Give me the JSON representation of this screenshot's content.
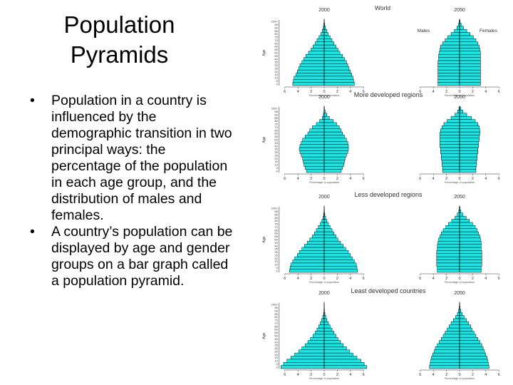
{
  "slide": {
    "title_line1": "Population",
    "title_line2": "Pyramids",
    "bullets": [
      "Population in a country is influenced by the demographic transition in two principal ways: the percentage of the population in each age group, and the distribution of males and females.",
      "A country’s population can be displayed by age and gender groups on a bar graph called a population pyramid."
    ]
  },
  "figure": {
    "colors": {
      "bar_fill": "#19e5e5",
      "bar_stroke": "#000000",
      "axis": "#333333"
    },
    "ylabel": "Age",
    "year_left": "2000",
    "year_right": "2050",
    "male_label": "Males",
    "female_label": "Females",
    "xlabel": "Percentage of population",
    "age_ticks": [
      "0",
      "5",
      "10",
      "15",
      "20",
      "25",
      "30",
      "35",
      "40",
      "45",
      "50",
      "55",
      "60",
      "65",
      "70",
      "75",
      "80",
      "85",
      "90",
      "95",
      "100+"
    ],
    "x_ticks": [
      "6",
      "4",
      "2",
      "0",
      "2",
      "4",
      "6"
    ]
  },
  "chart_data": [
    {
      "type": "bar",
      "orientation": "horizontal",
      "title": "World",
      "subtitle": "2000",
      "ylabel": "Age",
      "xlabel": "Percentage of population",
      "xlim": [
        -6,
        6
      ],
      "age_groups": [
        "0-4",
        "5-9",
        "10-14",
        "15-19",
        "20-24",
        "25-29",
        "30-34",
        "35-39",
        "40-44",
        "45-49",
        "50-54",
        "55-59",
        "60-64",
        "65-69",
        "70-74",
        "75-79",
        "80-84",
        "85-89",
        "90-94",
        "95-99",
        "100+"
      ],
      "series": [
        {
          "name": "Males",
          "values": [
            4.8,
            4.7,
            4.6,
            4.3,
            4.1,
            3.9,
            3.7,
            3.4,
            3.1,
            2.8,
            2.4,
            2.0,
            1.7,
            1.4,
            1.1,
            0.8,
            0.5,
            0.3,
            0.15,
            0.05,
            0.02
          ]
        },
        {
          "name": "Females",
          "values": [
            4.6,
            4.5,
            4.4,
            4.2,
            4.0,
            3.8,
            3.6,
            3.4,
            3.1,
            2.8,
            2.4,
            2.1,
            1.8,
            1.5,
            1.2,
            0.9,
            0.6,
            0.4,
            0.2,
            0.08,
            0.03
          ]
        }
      ]
    },
    {
      "type": "bar",
      "orientation": "horizontal",
      "title": "World",
      "subtitle": "2050",
      "ylabel": "Age",
      "xlabel": "Percentage of population",
      "xlim": [
        -6,
        6
      ],
      "age_groups": [
        "0-4",
        "5-9",
        "10-14",
        "15-19",
        "20-24",
        "25-29",
        "30-34",
        "35-39",
        "40-44",
        "45-49",
        "50-54",
        "55-59",
        "60-64",
        "65-69",
        "70-74",
        "75-79",
        "80-84",
        "85-89",
        "90-94",
        "95-99",
        "100+"
      ],
      "series": [
        {
          "name": "Males",
          "values": [
            3.3,
            3.3,
            3.3,
            3.3,
            3.3,
            3.3,
            3.3,
            3.3,
            3.2,
            3.2,
            3.1,
            3.0,
            2.9,
            2.6,
            2.2,
            1.8,
            1.3,
            0.8,
            0.4,
            0.15,
            0.05
          ]
        },
        {
          "name": "Females",
          "values": [
            3.2,
            3.2,
            3.2,
            3.2,
            3.2,
            3.2,
            3.2,
            3.2,
            3.2,
            3.2,
            3.2,
            3.1,
            3.0,
            2.8,
            2.5,
            2.1,
            1.6,
            1.1,
            0.6,
            0.25,
            0.08
          ]
        }
      ]
    },
    {
      "type": "bar",
      "orientation": "horizontal",
      "title": "More developed regions",
      "subtitle": "2000",
      "ylabel": "Age",
      "xlabel": "Percentage of population",
      "xlim": [
        -6,
        6
      ],
      "age_groups": [
        "0-4",
        "5-9",
        "10-14",
        "15-19",
        "20-24",
        "25-29",
        "30-34",
        "35-39",
        "40-44",
        "45-49",
        "50-54",
        "55-59",
        "60-64",
        "65-69",
        "70-74",
        "75-79",
        "80-84",
        "85-89",
        "90-94",
        "95-99",
        "100+"
      ],
      "series": [
        {
          "name": "Males",
          "values": [
            2.7,
            2.9,
            3.1,
            3.2,
            3.3,
            3.5,
            3.7,
            3.8,
            3.7,
            3.5,
            3.3,
            2.9,
            2.5,
            2.2,
            1.8,
            1.2,
            0.7,
            0.3,
            0.12,
            0.04,
            0.01
          ]
        },
        {
          "name": "Females",
          "values": [
            2.6,
            2.8,
            3.0,
            3.1,
            3.2,
            3.4,
            3.6,
            3.7,
            3.7,
            3.6,
            3.4,
            3.1,
            2.8,
            2.6,
            2.3,
            1.9,
            1.4,
            0.8,
            0.4,
            0.15,
            0.04
          ]
        }
      ]
    },
    {
      "type": "bar",
      "orientation": "horizontal",
      "title": "More developed regions",
      "subtitle": "2050",
      "ylabel": "Age",
      "xlabel": "Percentage of population",
      "xlim": [
        -6,
        6
      ],
      "age_groups": [
        "0-4",
        "5-9",
        "10-14",
        "15-19",
        "20-24",
        "25-29",
        "30-34",
        "35-39",
        "40-44",
        "45-49",
        "50-54",
        "55-59",
        "60-64",
        "65-69",
        "70-74",
        "75-79",
        "80-84",
        "85-89",
        "90-94",
        "95-99",
        "100+"
      ],
      "series": [
        {
          "name": "Males",
          "values": [
            2.6,
            2.6,
            2.7,
            2.7,
            2.8,
            2.8,
            2.9,
            2.9,
            3.0,
            3.0,
            3.0,
            3.0,
            3.0,
            2.9,
            2.7,
            2.4,
            1.9,
            1.3,
            0.7,
            0.3,
            0.1
          ]
        },
        {
          "name": "Females",
          "values": [
            2.5,
            2.5,
            2.6,
            2.6,
            2.7,
            2.7,
            2.8,
            2.8,
            2.9,
            2.9,
            3.0,
            3.0,
            3.1,
            3.1,
            3.0,
            2.8,
            2.4,
            1.8,
            1.1,
            0.5,
            0.2
          ]
        }
      ]
    },
    {
      "type": "bar",
      "orientation": "horizontal",
      "title": "Less developed regions",
      "subtitle": "2000",
      "ylabel": "Age",
      "xlabel": "Percentage of population",
      "xlim": [
        -6,
        6
      ],
      "age_groups": [
        "0-4",
        "5-9",
        "10-14",
        "15-19",
        "20-24",
        "25-29",
        "30-34",
        "35-39",
        "40-44",
        "45-49",
        "50-54",
        "55-59",
        "60-64",
        "65-69",
        "70-74",
        "75-79",
        "80-84",
        "85-89",
        "90-94",
        "95-99",
        "100+"
      ],
      "series": [
        {
          "name": "Males",
          "values": [
            5.3,
            5.2,
            5.1,
            4.8,
            4.5,
            4.1,
            3.8,
            3.4,
            3.0,
            2.6,
            2.2,
            1.8,
            1.5,
            1.2,
            0.9,
            0.6,
            0.35,
            0.2,
            0.08,
            0.03,
            0.01
          ]
        },
        {
          "name": "Females",
          "values": [
            5.1,
            5.0,
            4.9,
            4.6,
            4.3,
            4.0,
            3.7,
            3.3,
            2.9,
            2.5,
            2.1,
            1.8,
            1.5,
            1.2,
            0.9,
            0.65,
            0.4,
            0.22,
            0.1,
            0.04,
            0.01
          ]
        }
      ]
    },
    {
      "type": "bar",
      "orientation": "horizontal",
      "title": "Less developed regions",
      "subtitle": "2050",
      "ylabel": "Age",
      "xlabel": "Percentage of population",
      "xlim": [
        -6,
        6
      ],
      "age_groups": [
        "0-4",
        "5-9",
        "10-14",
        "15-19",
        "20-24",
        "25-29",
        "30-34",
        "35-39",
        "40-44",
        "45-49",
        "50-54",
        "55-59",
        "60-64",
        "65-69",
        "70-74",
        "75-79",
        "80-84",
        "85-89",
        "90-94",
        "95-99",
        "100+"
      ],
      "series": [
        {
          "name": "Males",
          "values": [
            3.4,
            3.4,
            3.5,
            3.5,
            3.5,
            3.5,
            3.5,
            3.4,
            3.4,
            3.3,
            3.2,
            3.0,
            2.8,
            2.5,
            2.1,
            1.7,
            1.2,
            0.7,
            0.35,
            0.12,
            0.04
          ]
        },
        {
          "name": "Females",
          "values": [
            3.3,
            3.3,
            3.4,
            3.4,
            3.4,
            3.4,
            3.4,
            3.3,
            3.3,
            3.3,
            3.2,
            3.1,
            2.9,
            2.7,
            2.4,
            2.0,
            1.5,
            1.0,
            0.5,
            0.2,
            0.06
          ]
        }
      ]
    },
    {
      "type": "bar",
      "orientation": "horizontal",
      "title": "Least developed countries",
      "subtitle": "2000",
      "ylabel": "Age",
      "xlabel": "Percentage of population",
      "xlim": [
        -6,
        6
      ],
      "age_groups": [
        "0-4",
        "5-9",
        "10-14",
        "15-19",
        "20-24",
        "25-29",
        "30-34",
        "35-39",
        "40-44",
        "45-49",
        "50-54",
        "55-59",
        "60-64",
        "65-69",
        "70-74",
        "75-79",
        "80-84",
        "85-89",
        "90-94",
        "95-99",
        "100+"
      ],
      "series": [
        {
          "name": "Males",
          "values": [
            6.6,
            6.2,
            5.7,
            5.1,
            4.5,
            3.9,
            3.4,
            2.9,
            2.5,
            2.1,
            1.7,
            1.4,
            1.1,
            0.85,
            0.6,
            0.4,
            0.22,
            0.1,
            0.04,
            0.01,
            0.005
          ]
        },
        {
          "name": "Females",
          "values": [
            6.5,
            6.1,
            5.6,
            5.0,
            4.4,
            3.9,
            3.4,
            2.9,
            2.5,
            2.1,
            1.8,
            1.5,
            1.2,
            0.9,
            0.65,
            0.42,
            0.25,
            0.12,
            0.05,
            0.02,
            0.005
          ]
        }
      ]
    },
    {
      "type": "bar",
      "orientation": "horizontal",
      "title": "Least developed countries",
      "subtitle": "2050",
      "ylabel": "Age",
      "xlabel": "Percentage of population",
      "xlim": [
        -6,
        6
      ],
      "age_groups": [
        "0-4",
        "5-9",
        "10-14",
        "15-19",
        "20-24",
        "25-29",
        "30-34",
        "35-39",
        "40-44",
        "45-49",
        "50-54",
        "55-59",
        "60-64",
        "65-69",
        "70-74",
        "75-79",
        "80-84",
        "85-89",
        "90-94",
        "95-99",
        "100+"
      ],
      "series": [
        {
          "name": "Males",
          "values": [
            4.6,
            4.5,
            4.4,
            4.3,
            4.1,
            3.9,
            3.7,
            3.4,
            3.1,
            2.8,
            2.5,
            2.2,
            1.9,
            1.6,
            1.3,
            0.95,
            0.6,
            0.33,
            0.15,
            0.05,
            0.02
          ]
        },
        {
          "name": "Females",
          "values": [
            4.5,
            4.4,
            4.3,
            4.2,
            4.0,
            3.8,
            3.6,
            3.4,
            3.1,
            2.8,
            2.5,
            2.2,
            1.9,
            1.7,
            1.4,
            1.05,
            0.7,
            0.4,
            0.2,
            0.07,
            0.03
          ]
        }
      ]
    }
  ]
}
